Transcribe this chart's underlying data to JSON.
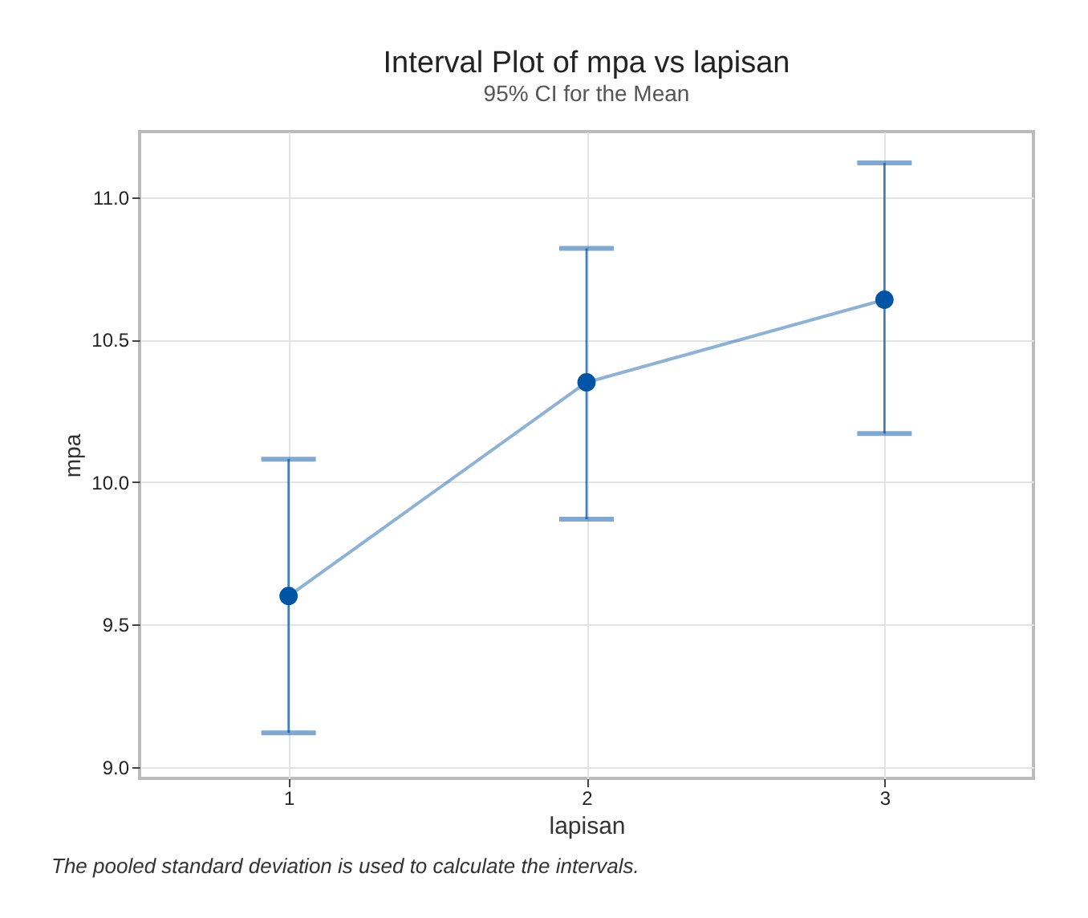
{
  "chart_data": {
    "type": "line",
    "title": "Interval Plot of mpa vs lapisan",
    "subtitle": "95% CI for the Mean",
    "xlabel": "lapisan",
    "ylabel": "mpa",
    "annotations": [
      "The pooled standard deviation is used to calculate the intervals."
    ],
    "categories": [
      "1",
      "2",
      "3"
    ],
    "series": [
      {
        "color": "#0054a6",
        "values": [
          9.6,
          10.35,
          10.64
        ],
        "errors": [
          [
            9.12,
            10.08
          ],
          [
            9.87,
            10.82
          ],
          [
            10.17,
            11.12
          ]
        ]
      }
    ],
    "ylim": [
      8.96,
      11.23
    ],
    "yticks": [
      {
        "value": 9,
        "label": "9.0"
      },
      {
        "value": 9.5,
        "label": "9.5"
      },
      {
        "value": 10,
        "label": "10.0"
      },
      {
        "value": 10.5,
        "label": "10.5"
      },
      {
        "value": 11,
        "label": "11.0"
      }
    ],
    "grid": true,
    "marker": "circle",
    "line_style": "solid"
  }
}
